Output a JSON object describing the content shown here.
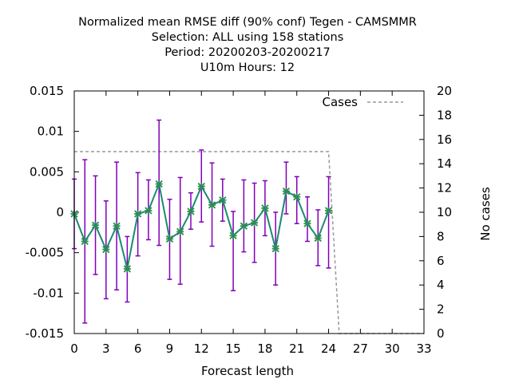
{
  "chart_data": {
    "type": "line",
    "title_lines": [
      "Normalized mean RMSE diff (90% conf) Tegen - CAMSMMR",
      "Selection: ALL using   158 stations",
      "Period: 20200203-20200217",
      "U10m   Hours:  12"
    ],
    "xlabel": "Forecast length",
    "ylabel_right": "No cases",
    "xlim": [
      0,
      33
    ],
    "ylim": [
      -0.015,
      0.015
    ],
    "y2lim": [
      0,
      20
    ],
    "x_ticks": [
      "0",
      "3",
      "6",
      "9",
      "12",
      "15",
      "18",
      "21",
      "24",
      "27",
      "30",
      "33"
    ],
    "y_ticks": [
      "-0.015",
      "-0.01",
      "-0.005",
      "0",
      "0.005",
      "0.01",
      "0.015"
    ],
    "y2_ticks": [
      "0",
      "2",
      "4",
      "6",
      "8",
      "10",
      "12",
      "14",
      "16",
      "18",
      "20"
    ],
    "legend": {
      "label": "Cases",
      "position": "top-right"
    },
    "colors": {
      "line": "#1a8a70",
      "errorbar": "#8000b8",
      "marker": "#2e8b57",
      "cases": "#999999"
    },
    "series": [
      {
        "x": [
          0,
          1,
          2,
          3,
          4,
          5,
          6,
          7,
          8,
          9,
          10,
          11,
          12,
          13,
          14,
          15,
          16,
          17,
          18,
          19,
          20,
          21,
          22,
          23,
          24
        ],
        "values": [
          -0.0002,
          -0.0036,
          -0.0016,
          -0.0046,
          -0.0017,
          -0.007,
          -0.0002,
          0.0002,
          0.0035,
          -0.0033,
          -0.0024,
          0.0001,
          0.0032,
          0.0009,
          0.0015,
          -0.0029,
          -0.0017,
          -0.0013,
          0.0005,
          -0.0045,
          0.0026,
          0.0019,
          -0.0014,
          -0.0032,
          0.0002
        ],
        "err_low": [
          -0.0045,
          -0.0137,
          -0.0077,
          -0.0107,
          -0.0096,
          -0.0111,
          -0.0054,
          -0.0034,
          -0.0041,
          -0.0083,
          -0.0089,
          -0.0021,
          -0.0012,
          -0.0042,
          -0.0011,
          -0.0097,
          -0.0049,
          -0.0062,
          -0.0029,
          -0.009,
          -0.0002,
          -0.0014,
          -0.0036,
          -0.0066,
          -0.0069
        ],
        "err_high": [
          0.0041,
          0.0065,
          0.0045,
          0.0014,
          0.0062,
          -0.003,
          0.0049,
          0.004,
          0.0114,
          0.0016,
          0.0043,
          0.0024,
          0.0077,
          0.0061,
          0.0041,
          0.0001,
          0.004,
          0.0036,
          0.0039,
          0.0,
          0.0062,
          0.0044,
          0.0019,
          0.0003,
          0.0044
        ]
      },
      {
        "name": "Cases",
        "axis": "right",
        "x": [
          0,
          24,
          25,
          33
        ],
        "values": [
          15,
          15,
          0,
          0
        ]
      }
    ]
  }
}
